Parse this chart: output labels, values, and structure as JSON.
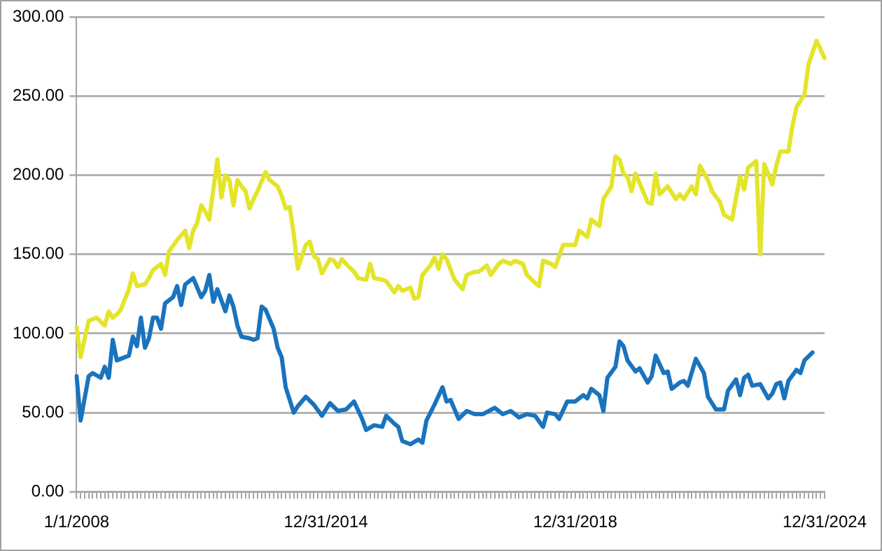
{
  "chart_data": {
    "type": "line",
    "categories": [
      "1/1/2008",
      null,
      null,
      null,
      null,
      null,
      null,
      null,
      null,
      null,
      null,
      null,
      null,
      null,
      null,
      null,
      null,
      null,
      null,
      null,
      null,
      null,
      null,
      null,
      null,
      null,
      null,
      null,
      null,
      null,
      null,
      null,
      null,
      null,
      null,
      null,
      null,
      null,
      null,
      null,
      null,
      null,
      null,
      null,
      null,
      null,
      null,
      null,
      null,
      null,
      null,
      null,
      null,
      null,
      null,
      null,
      null,
      null,
      null,
      null,
      null,
      null,
      "12/31/2014",
      null,
      null,
      null,
      null,
      null,
      null,
      null,
      null,
      null,
      null,
      null,
      null,
      null,
      null,
      null,
      null,
      null,
      null,
      null,
      null,
      null,
      null,
      null,
      null,
      null,
      null,
      null,
      null,
      null,
      null,
      null,
      null,
      null,
      null,
      null,
      null,
      null,
      null,
      null,
      null,
      null,
      null,
      null,
      null,
      null,
      null,
      null,
      null,
      null,
      null,
      null,
      null,
      null,
      null,
      null,
      null,
      null,
      null,
      null,
      null,
      null,
      "12/31/2018",
      null,
      null,
      null,
      null,
      null,
      null,
      null,
      null,
      null,
      null,
      null,
      null,
      null,
      null,
      null,
      null,
      null,
      null,
      null,
      null,
      null,
      null,
      null,
      null,
      null,
      null,
      null,
      null,
      null,
      null,
      null,
      null,
      null,
      null,
      null,
      null,
      null,
      null,
      null,
      null,
      null,
      null,
      null,
      null,
      null,
      null,
      null,
      null,
      null,
      null,
      null,
      null,
      null,
      null,
      null,
      null,
      null,
      null,
      null,
      null,
      null,
      "12/31/2024"
    ],
    "series": [
      {
        "color": "#e4e42a",
        "values": [
          104,
          85,
          null,
          108,
          null,
          110,
          null,
          105,
          114,
          110,
          112,
          115,
          null,
          128,
          138,
          130,
          null,
          131,
          135,
          140,
          null,
          144,
          137,
          152,
          null,
          159,
          null,
          165,
          154,
          165,
          170,
          181,
          177,
          172,
          null,
          210,
          186,
          200,
          197,
          181,
          197,
          193,
          190,
          179,
          185,
          190,
          null,
          202,
          197,
          null,
          193,
          187,
          179,
          180,
          163,
          141,
          null,
          156,
          158,
          149,
          147,
          138,
          null,
          147,
          146,
          142,
          147,
          144,
          null,
          139,
          135,
          null,
          134,
          144,
          135,
          null,
          134,
          133,
          null,
          126,
          130,
          127,
          null,
          129,
          122,
          123,
          137,
          null,
          143,
          148,
          141,
          150,
          147,
          null,
          134,
          null,
          128,
          137,
          null,
          139,
          139,
          null,
          143,
          137,
          null,
          144,
          146,
          null,
          144,
          146,
          null,
          144,
          137,
          null,
          132,
          130,
          146,
          null,
          144,
          142,
          null,
          156,
          156,
          null,
          156,
          165,
          null,
          161,
          172,
          null,
          168,
          185,
          null,
          193,
          212,
          210,
          201,
          199,
          190,
          201,
          null,
          189,
          183,
          182,
          201,
          188,
          null,
          193,
          null,
          185,
          188,
          185,
          null,
          193,
          188,
          206,
          null,
          197,
          190,
          null,
          183,
          175,
          null,
          172,
          186,
          199,
          191,
          205,
          null,
          209,
          150,
          207,
          201,
          194,
          206,
          215,
          null,
          215,
          231,
          243,
          null,
          251,
          270,
          null,
          285,
          null,
          274
        ]
      },
      {
        "color": "#1a73bd",
        "values": [
          73,
          45,
          null,
          73,
          75,
          null,
          72,
          79,
          72,
          96,
          83,
          84,
          null,
          86,
          98,
          92,
          110,
          91,
          97,
          110,
          110,
          103,
          119,
          null,
          123,
          130,
          118,
          131,
          null,
          135,
          null,
          123,
          127,
          137,
          120,
          128,
          null,
          114,
          124,
          117,
          105,
          98,
          null,
          97,
          96,
          97,
          117,
          115,
          null,
          103,
          91,
          85,
          66,
          58,
          50,
          54,
          null,
          60,
          null,
          55,
          null,
          48,
          null,
          56,
          null,
          51,
          null,
          52,
          null,
          57,
          null,
          46,
          39,
          null,
          42,
          null,
          41,
          48,
          null,
          43,
          41,
          32,
          null,
          30,
          null,
          33,
          31,
          45,
          null,
          55,
          null,
          66,
          57,
          58,
          null,
          46,
          null,
          51,
          null,
          49,
          null,
          49,
          null,
          null,
          53,
          null,
          49,
          null,
          51,
          null,
          47,
          null,
          49,
          null,
          48,
          null,
          41,
          50,
          null,
          49,
          46,
          null,
          57,
          null,
          57,
          null,
          61,
          59,
          65,
          null,
          61,
          51,
          72,
          null,
          79,
          95,
          92,
          83,
          null,
          76,
          78,
          null,
          69,
          73,
          86,
          null,
          75,
          76,
          65,
          null,
          69,
          70,
          67,
          null,
          84,
          null,
          75,
          60,
          null,
          52,
          null,
          52,
          64,
          null,
          71,
          61,
          72,
          74,
          67,
          null,
          68,
          null,
          59,
          62,
          68,
          69,
          59,
          70,
          null,
          77,
          75,
          83,
          null,
          88,
          null,
          null,
          null
        ]
      }
    ],
    "ylim": [
      0,
      300
    ],
    "yticks": [
      {
        "value": 0,
        "label": "0.00"
      },
      {
        "value": 50,
        "label": "50.00"
      },
      {
        "value": 100,
        "label": "100.00"
      },
      {
        "value": 150,
        "label": "150.00"
      },
      {
        "value": 200,
        "label": "200.00"
      },
      {
        "value": 250,
        "label": "250.00"
      },
      {
        "value": 300,
        "label": "300.00"
      }
    ],
    "grid": "y",
    "marker": "none",
    "line_style": "solid"
  }
}
